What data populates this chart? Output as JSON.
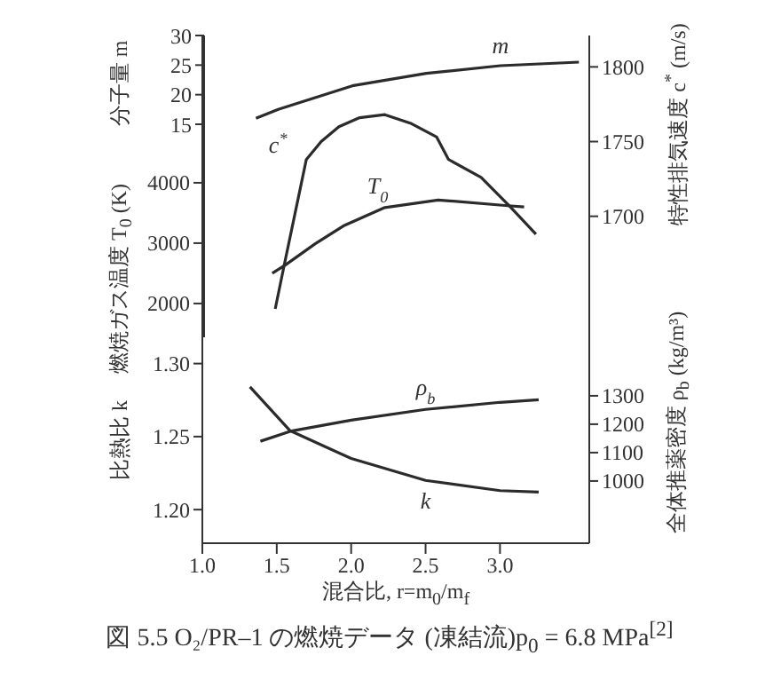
{
  "chart_data": [
    {
      "type": "line",
      "ylabel": "分子量 m",
      "y2label": "特性排気速度 c$^{*}$ (m/s)",
      "y3label": "燃焼ガス温度 T$_{0}$ (K)",
      "tick_labels": "y",
      "xlim": [
        1.0,
        3.6
      ],
      "ylim": [
        -21,
        30
      ],
      "yticks": [
        15,
        20,
        25,
        30
      ],
      "y2lim": [
        1619,
        1821
      ],
      "y2ticks": [
        1700,
        1750,
        1800
      ],
      "y3lim": [
        1440,
        6440
      ],
      "y3ticks": [
        2000,
        3000,
        4000
      ],
      "series": [
        {
          "name": "m",
          "color": "#2b2b2b",
          "x": [
            1.35,
            1.5,
            2.0,
            2.5,
            3.0,
            3.53
          ],
          "values": [
            16,
            17.5,
            21.5,
            23.6,
            24.9,
            25.5
          ]
        },
        {
          "name": "c$^{*}$",
          "color": "#2b2b2b",
          "axis": "y2",
          "x": [
            1.48,
            1.54,
            1.69,
            1.79,
            1.91,
            2.05,
            2.22,
            2.4,
            2.57,
            2.65,
            2.87,
            3.06,
            3.24
          ],
          "values": [
            1638,
            1667,
            1738,
            1750,
            1760,
            1766,
            1768,
            1762,
            1753,
            1738,
            1726,
            1707,
            1688
          ]
        },
        {
          "name": "T$_{0}$",
          "color": "#2b2b2b",
          "axis": "y3",
          "x": [
            1.46,
            1.55,
            1.75,
            1.94,
            2.22,
            2.58,
            3.05,
            3.16
          ],
          "values": [
            2500,
            2640,
            2990,
            3285,
            3590,
            3715,
            3620,
            3600
          ]
        }
      ]
    },
    {
      "type": "line",
      "title": "図 5.5 O₂/PR–1 の燃焼データ (凍結流)p$_{0}$ = 6.8 MPa$^{[2]}$",
      "xlabel": "混合比, r=m$_{0}$/m$_{f}$",
      "ylabel": "比熱比 k",
      "y2label": "全体推薬密度 ρ$_{b}$ (kg/m³)",
      "xlim": [
        1.0,
        3.6
      ],
      "xticks": [
        {
          "value": 1,
          "label": "1.0"
        },
        1.5,
        {
          "value": 2,
          "label": "2.0"
        },
        2.5,
        {
          "value": 3,
          "label": "3.0"
        }
      ],
      "ylim": [
        1.177,
        1.318
      ],
      "yticks": [
        {
          "value": 1.2,
          "label": "1.20"
        },
        1.25,
        {
          "value": 1.3,
          "label": "1.30"
        }
      ],
      "y2lim": [
        781,
        1506
      ],
      "y2ticks": [
        1000,
        1100,
        1200,
        1300
      ],
      "series": [
        {
          "name": "k",
          "color": "#2b2b2b",
          "x": [
            1.32,
            1.59,
            2.0,
            2.5,
            3.0,
            3.26
          ],
          "values": [
            1.284,
            1.254,
            1.235,
            1.22,
            1.213,
            1.212
          ]
        },
        {
          "name": "ρ$_{b}$",
          "color": "#2b2b2b",
          "axis": "y2",
          "x": [
            1.39,
            1.59,
            2.0,
            2.5,
            3.0,
            3.26
          ],
          "values": [
            1140,
            1175,
            1214,
            1252,
            1277,
            1286
          ]
        }
      ]
    }
  ]
}
